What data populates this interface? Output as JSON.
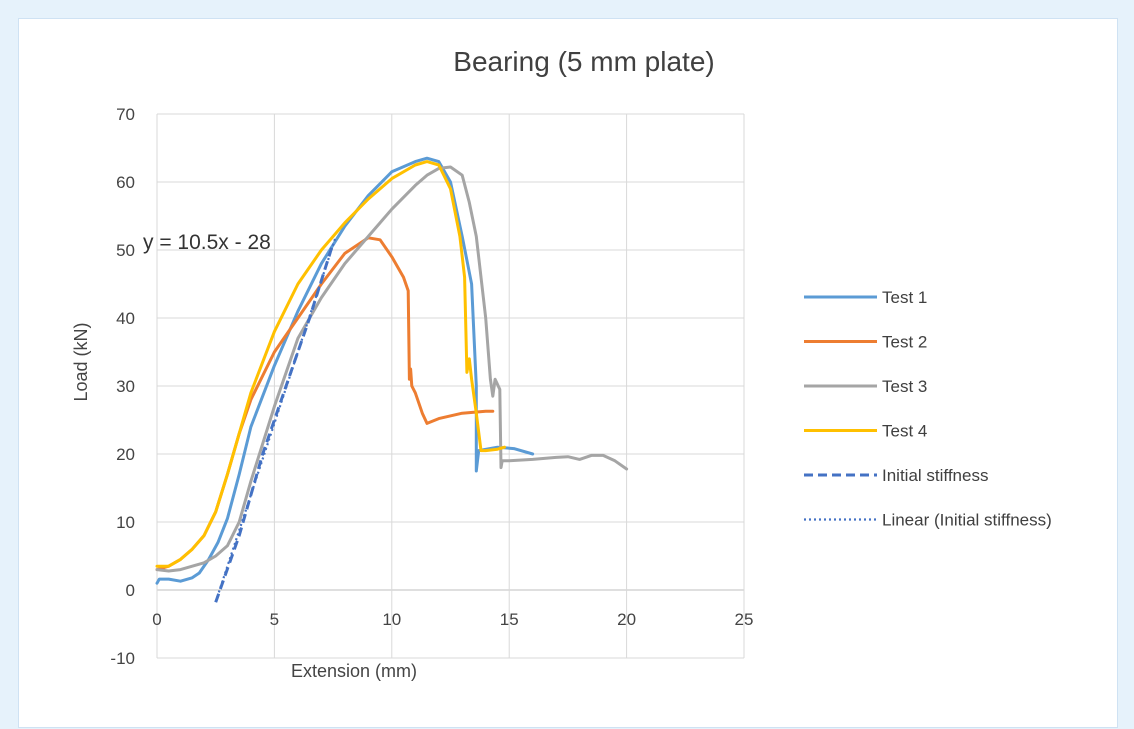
{
  "chart_data": {
    "type": "line",
    "title": "Bearing (5 mm plate)",
    "xlabel": "Extension (mm)",
    "ylabel": "Load (kN)",
    "xlim": [
      0,
      25
    ],
    "ylim": [
      -10,
      70
    ],
    "xticks": [
      0,
      5,
      10,
      15,
      20,
      25
    ],
    "yticks": [
      -10,
      0,
      10,
      20,
      30,
      40,
      50,
      60,
      70
    ],
    "grid": true,
    "legend_position": "right",
    "trendline_equation": "y = 10.5x - 28",
    "series": [
      {
        "name": "Test 1",
        "color": "#5b9bd5",
        "dash": "solid",
        "points": [
          [
            0,
            1
          ],
          [
            0.1,
            1.6
          ],
          [
            0.5,
            1.6
          ],
          [
            1,
            1.3
          ],
          [
            1.5,
            1.8
          ],
          [
            1.8,
            2.5
          ],
          [
            2.2,
            4.5
          ],
          [
            2.6,
            7
          ],
          [
            3,
            10.5
          ],
          [
            3.5,
            17
          ],
          [
            4,
            24
          ],
          [
            5,
            33
          ],
          [
            6,
            41
          ],
          [
            7,
            48
          ],
          [
            8,
            53.5
          ],
          [
            9,
            58
          ],
          [
            10,
            61.5
          ],
          [
            11,
            63
          ],
          [
            11.5,
            63.5
          ],
          [
            12,
            63
          ],
          [
            12.5,
            60
          ],
          [
            13,
            52
          ],
          [
            13.4,
            45
          ],
          [
            13.6,
            30
          ],
          [
            13.6,
            17.5
          ],
          [
            13.7,
            20.5
          ],
          [
            14.5,
            21
          ],
          [
            15.2,
            20.8
          ],
          [
            16,
            20
          ]
        ]
      },
      {
        "name": "Test 2",
        "color": "#ed7d31",
        "dash": "solid",
        "points": [
          [
            0,
            3
          ],
          [
            0.5,
            3.5
          ],
          [
            1,
            4.5
          ],
          [
            1.5,
            6
          ],
          [
            2,
            8
          ],
          [
            2.5,
            11.5
          ],
          [
            3,
            17
          ],
          [
            3.5,
            23
          ],
          [
            4,
            28
          ],
          [
            5,
            35
          ],
          [
            6,
            40
          ],
          [
            7,
            45
          ],
          [
            8,
            49.5
          ],
          [
            9,
            51.8
          ],
          [
            9.5,
            51.5
          ],
          [
            10,
            49
          ],
          [
            10.5,
            46
          ],
          [
            10.7,
            44
          ],
          [
            10.75,
            31
          ],
          [
            10.8,
            32.5
          ],
          [
            10.85,
            30
          ],
          [
            11,
            29
          ],
          [
            11.3,
            26
          ],
          [
            11.5,
            24.5
          ],
          [
            12,
            25.2
          ],
          [
            13,
            26
          ],
          [
            14,
            26.3
          ],
          [
            14.3,
            26.3
          ]
        ]
      },
      {
        "name": "Test 3",
        "color": "#a5a5a5",
        "dash": "solid",
        "points": [
          [
            0,
            3
          ],
          [
            0.5,
            2.8
          ],
          [
            1,
            3
          ],
          [
            1.5,
            3.5
          ],
          [
            2,
            4
          ],
          [
            2.5,
            5
          ],
          [
            3,
            6.5
          ],
          [
            3.5,
            10
          ],
          [
            4,
            16
          ],
          [
            5,
            27
          ],
          [
            6,
            37
          ],
          [
            7,
            43
          ],
          [
            8,
            48
          ],
          [
            9,
            52
          ],
          [
            10,
            56
          ],
          [
            11,
            59.5
          ],
          [
            11.5,
            61
          ],
          [
            12,
            62
          ],
          [
            12.5,
            62.2
          ],
          [
            13,
            61
          ],
          [
            13.3,
            57
          ],
          [
            13.6,
            52
          ],
          [
            14,
            40
          ],
          [
            14.2,
            31
          ],
          [
            14.3,
            28.5
          ],
          [
            14.4,
            31
          ],
          [
            14.6,
            29.5
          ],
          [
            14.65,
            18
          ],
          [
            14.7,
            19
          ],
          [
            15,
            19
          ],
          [
            16,
            19.2
          ],
          [
            17,
            19.5
          ],
          [
            17.5,
            19.6
          ],
          [
            18,
            19.2
          ],
          [
            18.5,
            19.8
          ],
          [
            19,
            19.8
          ],
          [
            19.5,
            19
          ],
          [
            20,
            17.8
          ]
        ]
      },
      {
        "name": "Test 4",
        "color": "#ffc000",
        "dash": "solid",
        "points": [
          [
            0,
            3.5
          ],
          [
            0.5,
            3.5
          ],
          [
            1,
            4.5
          ],
          [
            1.5,
            6
          ],
          [
            2,
            8
          ],
          [
            2.5,
            11.5
          ],
          [
            3,
            17
          ],
          [
            3.5,
            23
          ],
          [
            4,
            29
          ],
          [
            5,
            38
          ],
          [
            6,
            45
          ],
          [
            7,
            50
          ],
          [
            8,
            54
          ],
          [
            9,
            57.5
          ],
          [
            10,
            60.5
          ],
          [
            11,
            62.5
          ],
          [
            11.5,
            63
          ],
          [
            12,
            62.5
          ],
          [
            12.5,
            59
          ],
          [
            12.9,
            52
          ],
          [
            13.1,
            46
          ],
          [
            13.2,
            32
          ],
          [
            13.3,
            34
          ],
          [
            13.4,
            31
          ],
          [
            13.6,
            26
          ],
          [
            13.8,
            20.5
          ],
          [
            14,
            20.5
          ],
          [
            14.5,
            20.7
          ],
          [
            14.8,
            21
          ]
        ]
      },
      {
        "name": "Initial stiffness",
        "color": "#4472c4",
        "dash": "dashed",
        "points": [
          [
            2.5,
            -1.8
          ],
          [
            3.5,
            8
          ],
          [
            4.5,
            20
          ],
          [
            5.5,
            30
          ],
          [
            6.5,
            40
          ],
          [
            7.5,
            51
          ]
        ]
      },
      {
        "name": "Linear (Initial stiffness)",
        "color": "#4472c4",
        "dash": "dotted",
        "points": [
          [
            2.5,
            -1.75
          ],
          [
            7.6,
            51.8
          ]
        ]
      }
    ]
  }
}
